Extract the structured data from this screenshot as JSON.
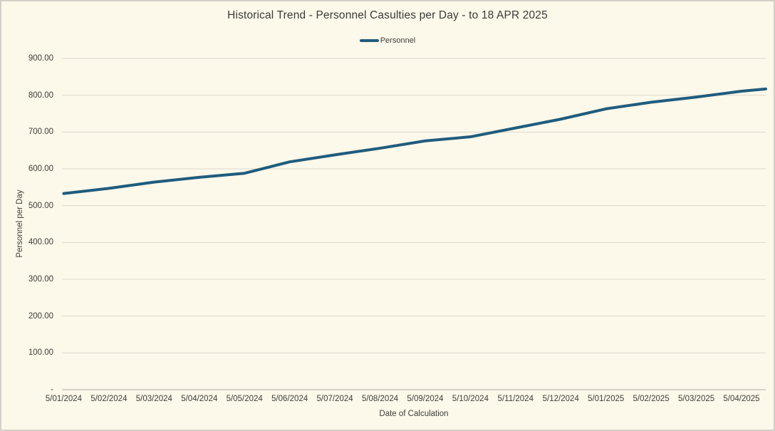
{
  "chart_data": {
    "type": "line",
    "title": "Historical Trend - Personnel Casulties per Day - to 18 APR 2025",
    "xlabel": "Date of Calculation",
    "ylabel": "Personnel per Day",
    "categories": [
      "5/01/2024",
      "5/02/2024",
      "5/03/2024",
      "5/04/2024",
      "5/05/2024",
      "5/06/2024",
      "5/07/2024",
      "5/08/2024",
      "5/09/2024",
      "5/10/2024",
      "5/11/2024",
      "5/12/2024",
      "5/01/2025",
      "5/02/2025",
      "5/03/2025",
      "5/04/2025"
    ],
    "series": [
      {
        "name": "Personnel",
        "color": "#1f5c7d",
        "values": [
          533,
          547,
          564,
          577,
          588,
          619,
          638,
          656,
          676,
          687,
          711,
          735,
          763,
          781,
          795,
          811
        ],
        "edge_end_value": 817
      }
    ],
    "ylim": [
      0,
      900
    ],
    "y_tick_labels": [
      "-",
      "100.00",
      "200.00",
      "300.00",
      "400.00",
      "500.00",
      "600.00",
      "700.00",
      "800.00",
      "900.00"
    ],
    "grid": "horizontal",
    "legend_position": "top-center"
  },
  "colors": {
    "background": "#fcf8ea",
    "border": "#d3d0c8",
    "gridline": "#dcd8cc",
    "axis_line": "#aeaba1",
    "series_line": "#1f5c7d",
    "text": "#3e3d38",
    "title_text": "#3b3a35"
  }
}
